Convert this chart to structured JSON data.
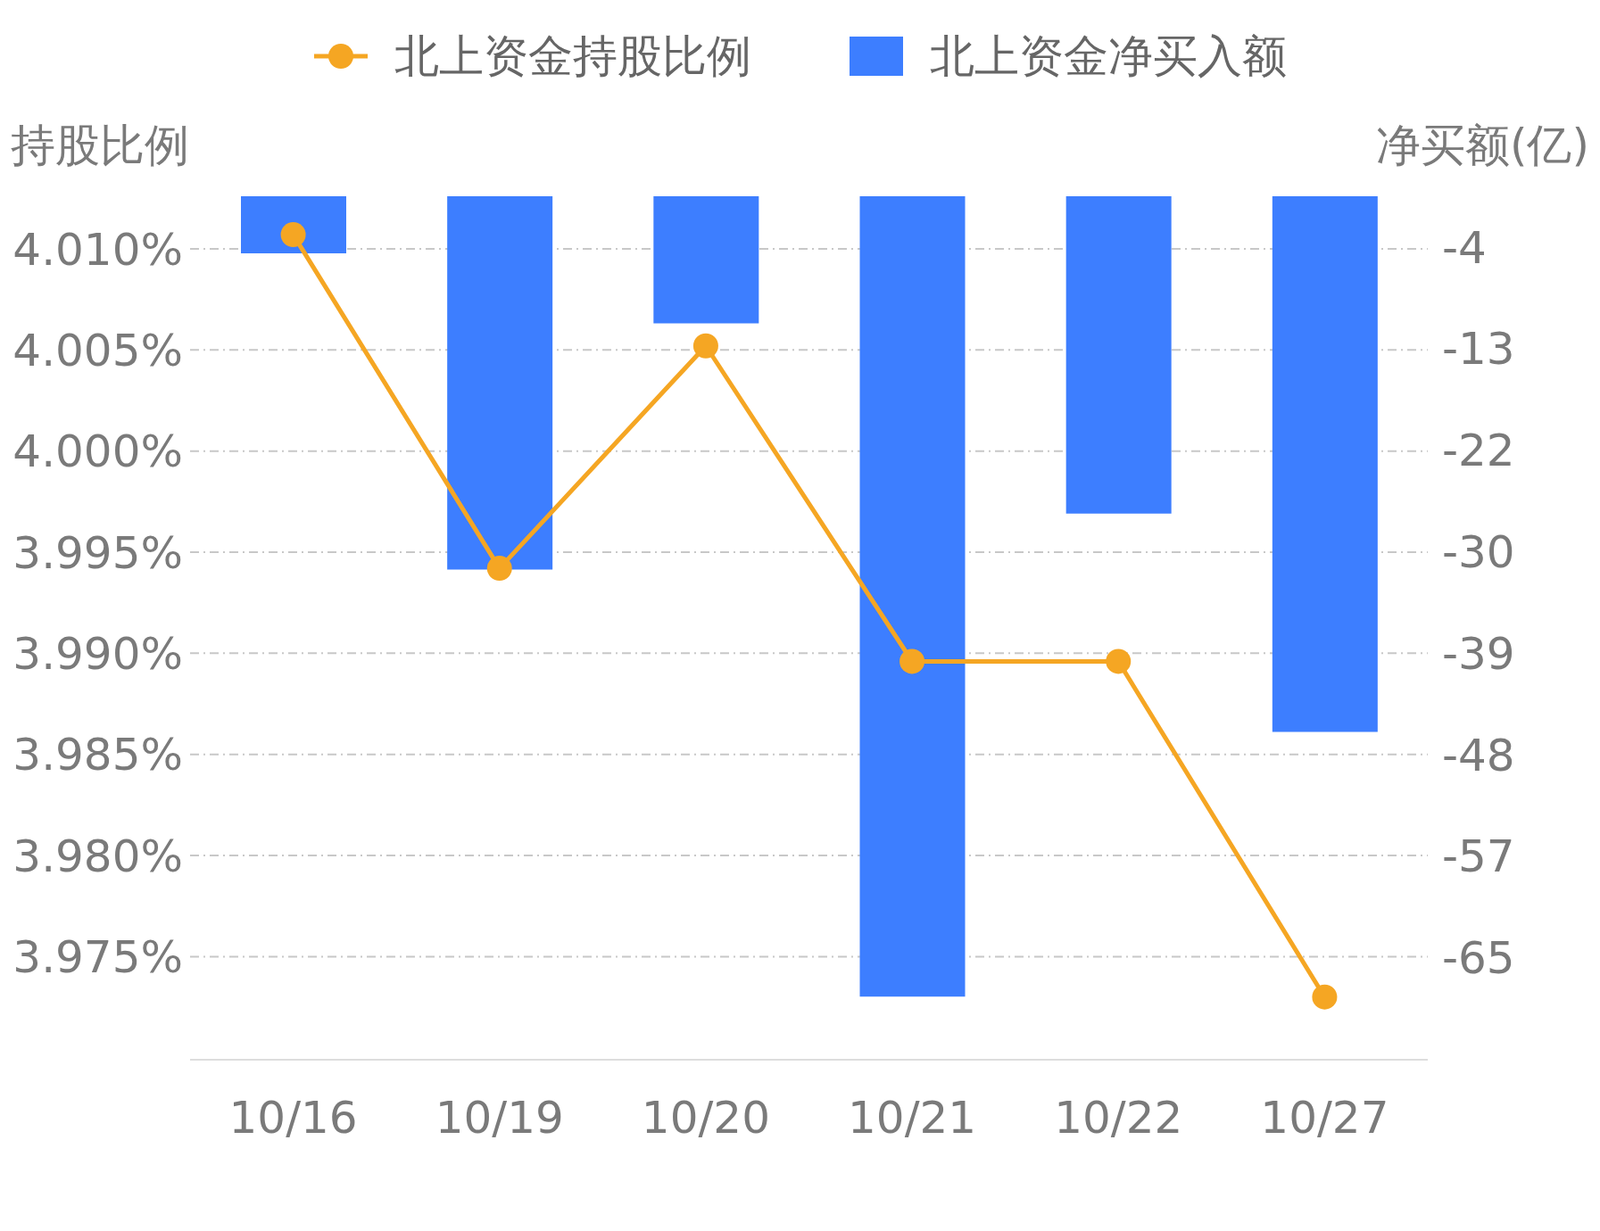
{
  "chart_data": {
    "type": "bar",
    "ylabel": "持股比例",
    "y2label": "净买额(亿)",
    "categories": [
      "10/16",
      "10/19",
      "10/20",
      "10/21",
      "10/22",
      "10/27"
    ],
    "series": [
      {
        "name": "北上资金持股比例",
        "type": "line",
        "color": "#f5a623",
        "marker": "circle",
        "line_style": "solid",
        "values": [
          4.0107,
          3.9942,
          4.0052,
          3.9896,
          3.9896,
          3.973
        ]
      },
      {
        "name": "北上资金净买入额",
        "type": "bar",
        "axis": "y2",
        "color": "#3d7eff",
        "values": [
          -4.9,
          -32.0,
          -10.9,
          -68.6,
          -27.2,
          -45.9
        ]
      }
    ],
    "ylim": [
      3.9699,
      4.0126
    ],
    "yticks": [
      {
        "value": 4.01,
        "label": "4.010%"
      },
      {
        "value": 4.005,
        "label": "4.005%"
      },
      {
        "value": 4.0,
        "label": "4.000%"
      },
      {
        "value": 3.995,
        "label": "3.995%"
      },
      {
        "value": 3.99,
        "label": "3.990%"
      },
      {
        "value": 3.985,
        "label": "3.985%"
      },
      {
        "value": 3.98,
        "label": "3.980%"
      },
      {
        "value": 3.975,
        "label": "3.975%"
      }
    ],
    "y2lim": [
      -74,
      0
    ],
    "y2ticks": [
      {
        "value": -4.35,
        "label": "-4"
      },
      {
        "value": -13.05,
        "label": "-13"
      },
      {
        "value": -21.75,
        "label": "-22"
      },
      {
        "value": -30.45,
        "label": "-30"
      },
      {
        "value": -39.15,
        "label": "-39"
      },
      {
        "value": -47.85,
        "label": "-48"
      },
      {
        "value": -56.55,
        "label": "-57"
      },
      {
        "value": -65.25,
        "label": "-65"
      }
    ],
    "grid": "y",
    "legend": "top"
  }
}
